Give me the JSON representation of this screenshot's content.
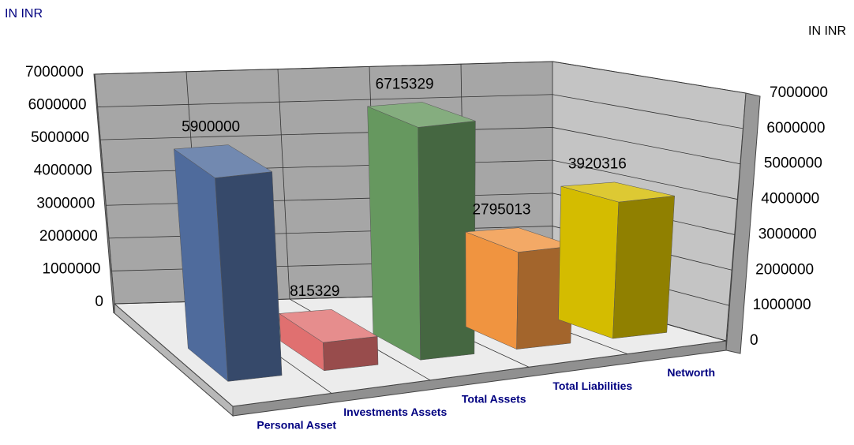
{
  "chart_data": {
    "type": "bar3d",
    "y_label": "IN INR",
    "y2_label": "IN INR",
    "categories": [
      "Personal Asset",
      "Investments Assets",
      "Total Assets",
      "Total Liabilities",
      "Networth"
    ],
    "values": [
      5900000,
      815329,
      6715329,
      2795013,
      3920316
    ],
    "colors": [
      "#4f6b9c",
      "#e07070",
      "#66985f",
      "#f09440",
      "#d4bc00"
    ],
    "ylim": [
      0,
      7000000
    ],
    "yticks": [
      0,
      1000000,
      2000000,
      3000000,
      4000000,
      5000000,
      6000000,
      7000000
    ],
    "y2lim": [
      0,
      7000000
    ],
    "y2ticks": [
      0,
      1000000,
      2000000,
      3000000,
      4000000,
      5000000,
      6000000,
      7000000
    ],
    "grid": true
  }
}
